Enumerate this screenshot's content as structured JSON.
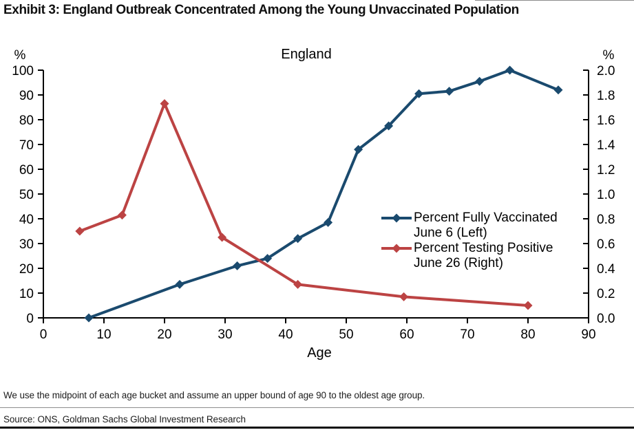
{
  "page": {
    "exhibit_title": "Exhibit 3: England Outbreak Concentrated Among the Young Unvaccinated Population",
    "footnote": "We use the midpoint of each age bucket and assume an upper bound of age 90 to the oldest age group.",
    "source": "Source: ONS, Goldman Sachs Global Investment Research"
  },
  "chart_data": {
    "type": "line",
    "title": "England",
    "xlabel": "Age",
    "left_axis_label": "%",
    "right_axis_label": "%",
    "xlim": [
      0,
      90
    ],
    "x_ticks": [
      0,
      10,
      20,
      30,
      40,
      50,
      60,
      70,
      80,
      90
    ],
    "left_ylim": [
      0,
      100
    ],
    "left_ticks": [
      0,
      10,
      20,
      30,
      40,
      50,
      60,
      70,
      80,
      90,
      100
    ],
    "right_ylim": [
      0.0,
      2.0
    ],
    "right_ticks": [
      "0.0",
      "0.2",
      "0.4",
      "0.6",
      "0.8",
      "1.0",
      "1.2",
      "1.4",
      "1.6",
      "1.8",
      "2.0"
    ],
    "grid": false,
    "legend_position": "inside-right",
    "marker": "diamond",
    "series": [
      {
        "key": "fully-vaccinated",
        "name": "Percent Fully Vaccinated June 6 (Left)",
        "axis": "left",
        "color": "#1a4a6e",
        "x": [
          7.5,
          22.5,
          32,
          37,
          42,
          47,
          52,
          57,
          62,
          67,
          72,
          77,
          85
        ],
        "y": [
          0,
          13.5,
          21,
          24,
          32,
          38.5,
          68,
          77.5,
          90.5,
          91.5,
          95.5,
          100,
          92
        ]
      },
      {
        "key": "testing-positive",
        "name": "Percent Testing Positive June 26 (Right)",
        "axis": "right",
        "color": "#bc4343",
        "x": [
          6,
          13,
          20,
          29.5,
          42,
          59.5,
          80
        ],
        "y": [
          0.7,
          0.83,
          1.73,
          0.65,
          0.27,
          0.17,
          0.1
        ]
      }
    ]
  }
}
